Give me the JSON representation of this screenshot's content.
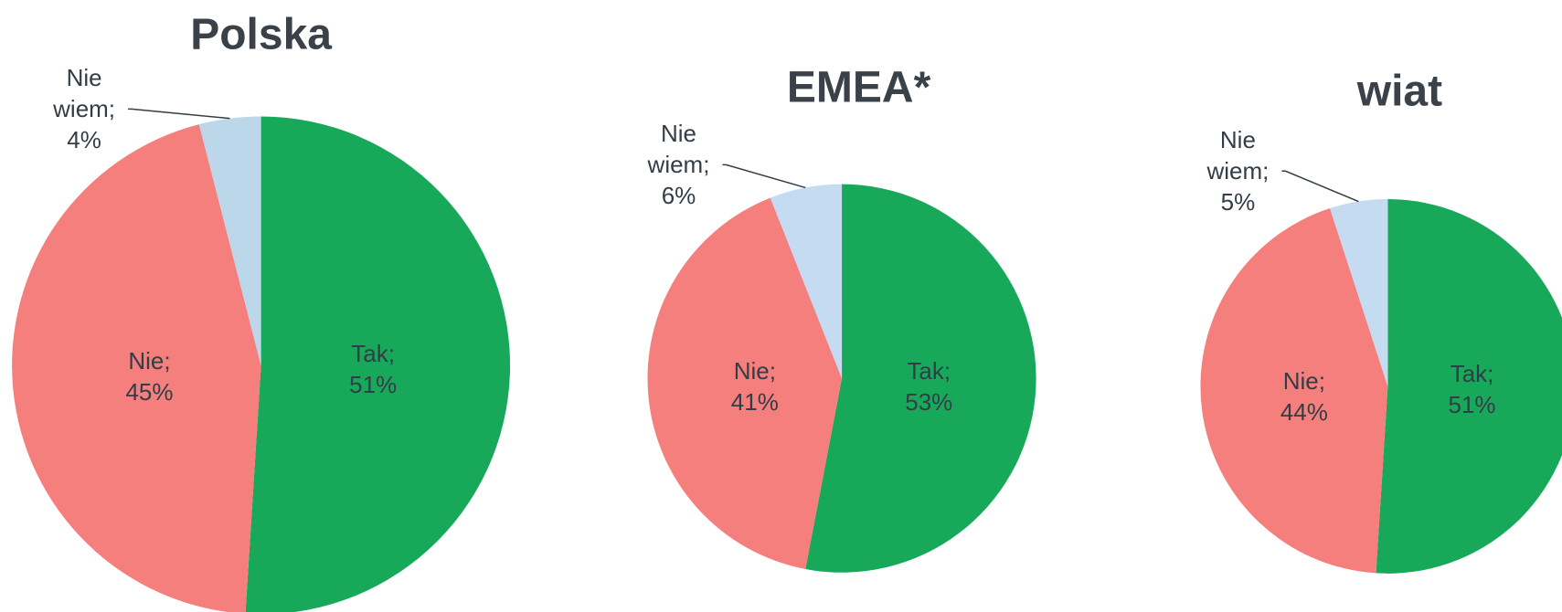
{
  "chart_data": [
    {
      "type": "pie",
      "title": "Polska",
      "categories": [
        "Tak",
        "Nie",
        "Nie wiem"
      ],
      "values": [
        51,
        45,
        4
      ],
      "value_labels": [
        "Tak; 51%",
        "Nie; 45%",
        "Nie wiem; 4%"
      ],
      "colors": [
        "#17a85a",
        "#f47f7c",
        "#bcd6ea"
      ]
    },
    {
      "type": "pie",
      "title": "EMEA*",
      "categories": [
        "Tak",
        "Nie",
        "Nie wiem"
      ],
      "values": [
        53,
        41,
        6
      ],
      "value_labels": [
        "Tak; 53%",
        "Nie; 41%",
        "Nie wiem; 6%"
      ],
      "colors": [
        "#17a85a",
        "#f47f7c",
        "#c5dbf2"
      ]
    },
    {
      "type": "pie",
      "title": "wiat",
      "categories": [
        "Tak",
        "Nie",
        "Nie wiem"
      ],
      "values": [
        51,
        44,
        5
      ],
      "value_labels": [
        "Tak; 51%",
        "Nie; 44%",
        "Nie wiem; 5%"
      ],
      "colors": [
        "#17a85a",
        "#f47f7c",
        "#c5dbf2"
      ]
    }
  ]
}
